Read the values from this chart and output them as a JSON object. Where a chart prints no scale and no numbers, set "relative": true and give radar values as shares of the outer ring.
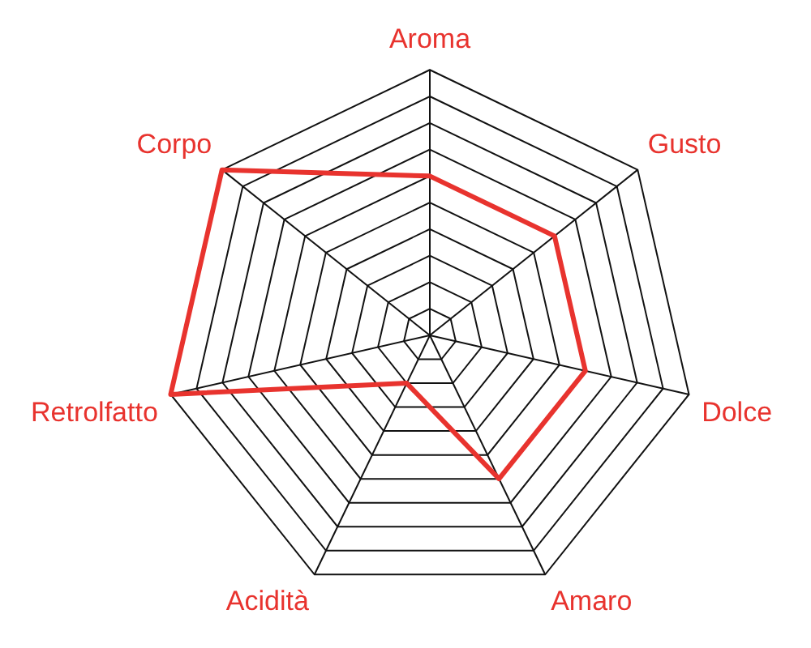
{
  "chart_data": {
    "type": "radar",
    "relative": true,
    "grid": true,
    "legend": false,
    "categories": [
      "Aroma",
      "Gusto",
      "Dolce",
      "Amaro",
      "Acidità",
      "Retrolfatto",
      "Corpo"
    ],
    "series": [
      {
        "color": "#e8332e",
        "values": [
          0.6,
          0.6,
          0.6,
          0.6,
          0.2,
          1,
          1
        ]
      }
    ]
  }
}
